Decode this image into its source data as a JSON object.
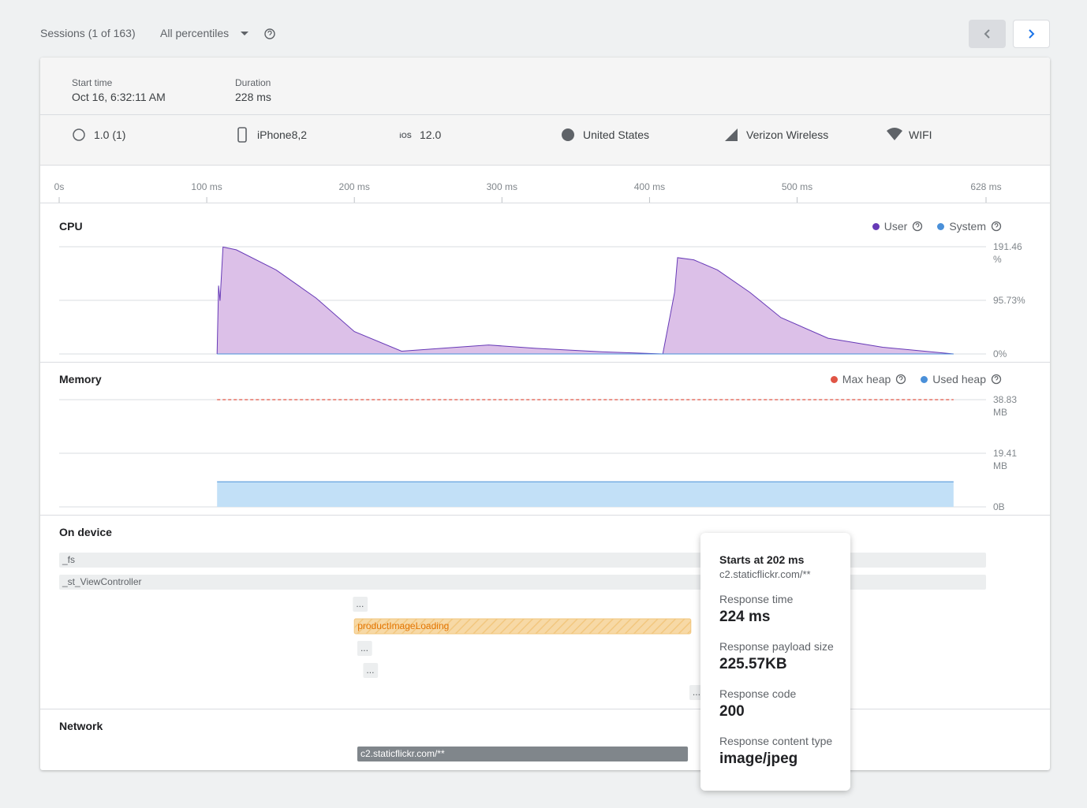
{
  "header": {
    "sessions": "Sessions (1 of 163)",
    "percentiles": "All percentiles"
  },
  "summary": {
    "start_label": "Start time",
    "start_value": "Oct 16, 6:32:11 AM",
    "duration_label": "Duration",
    "duration_value": "228 ms"
  },
  "attributes": {
    "version": "1.0 (1)",
    "device": "iPhone8,2",
    "os_badge": "iOS",
    "os": "12.0",
    "country": "United States",
    "carrier": "Verizon Wireless",
    "network": "WIFI"
  },
  "timeline": {
    "xlim": [
      0,
      628
    ],
    "xticks": [
      {
        "value": 0,
        "label": "0s"
      },
      {
        "value": 100,
        "label": "100 ms"
      },
      {
        "value": 200,
        "label": "200 ms"
      },
      {
        "value": 300,
        "label": "300 ms"
      },
      {
        "value": 400,
        "label": "400 ms"
      },
      {
        "value": 500,
        "label": "500 ms"
      },
      {
        "value": 628,
        "label": "628 ms"
      }
    ]
  },
  "cpu": {
    "type": "area",
    "title": "CPU",
    "ylim": [
      0,
      191.46
    ],
    "yticks": [
      {
        "value": 0,
        "label": "0%"
      },
      {
        "value": 95.73,
        "label": "95.73%"
      },
      {
        "value": 191.46,
        "label": "191.46 %"
      }
    ],
    "series": [
      {
        "name": "User",
        "color": "#673ab7",
        "fill": "#dcc0e8",
        "x": [
          107,
          108,
          109,
          111,
          120,
          147,
          174,
          200,
          232,
          259,
          291,
          323,
          366,
          409,
          417,
          419,
          430,
          446,
          468,
          489,
          521,
          558,
          606
        ],
        "values": [
          0,
          122,
          95,
          191,
          186,
          150,
          100,
          40,
          5,
          10,
          16,
          10,
          4,
          0,
          110,
          172,
          168,
          150,
          110,
          65,
          28,
          12,
          0
        ]
      },
      {
        "name": "System",
        "color": "#4a90d9",
        "x": [
          107,
          606
        ],
        "values": [
          0,
          0
        ]
      }
    ]
  },
  "memory": {
    "type": "area",
    "title": "Memory",
    "ylim": [
      0,
      38.83
    ],
    "yticks": [
      {
        "value": 0,
        "label": "0B"
      },
      {
        "value": 19.41,
        "label": "19.41 MB"
      },
      {
        "value": 38.83,
        "label": "38.83 MB"
      }
    ],
    "series": [
      {
        "name": "Max heap",
        "color": "#e05545",
        "dashed": true,
        "x": [
          107,
          606
        ],
        "values": [
          38.83,
          38.83
        ]
      },
      {
        "name": "Used heap",
        "color": "#4a90d9",
        "fill": "#c2e0f7",
        "x": [
          107,
          606
        ],
        "values": [
          9.1,
          9.1
        ]
      }
    ]
  },
  "on_device": {
    "title": "On device",
    "traces": [
      {
        "label": "_fs",
        "start": 0,
        "end": 628,
        "color": "#eceeef"
      },
      {
        "label": "_st_ViewController",
        "start": 0,
        "end": 628,
        "color": "#eceeef"
      },
      {
        "label": "...",
        "start": 199,
        "end": 209,
        "color": "#eceeef"
      },
      {
        "label": "productImageLoading",
        "start": 200,
        "end": 428,
        "color": "#f7d9a6"
      },
      {
        "label": "...",
        "start": 202,
        "end": 212,
        "color": "#eceeef"
      },
      {
        "label": "...",
        "start": 206,
        "end": 216,
        "color": "#eceeef"
      },
      {
        "label": "...",
        "start": 427,
        "end": 437,
        "color": "#eceeef"
      }
    ]
  },
  "network": {
    "title": "Network",
    "requests": [
      {
        "label": "c2.staticflickr.com/**",
        "start": 202,
        "end": 426,
        "color": "#80868b"
      }
    ]
  },
  "tooltip": {
    "title": "Starts at 202 ms",
    "subtitle": "c2.staticflickr.com/**",
    "fields": [
      {
        "label": "Response time",
        "value": "224 ms"
      },
      {
        "label": "Response payload size",
        "value": "225.57KB"
      },
      {
        "label": "Response code",
        "value": "200"
      },
      {
        "label": "Response content type",
        "value": "image/jpeg"
      }
    ]
  }
}
